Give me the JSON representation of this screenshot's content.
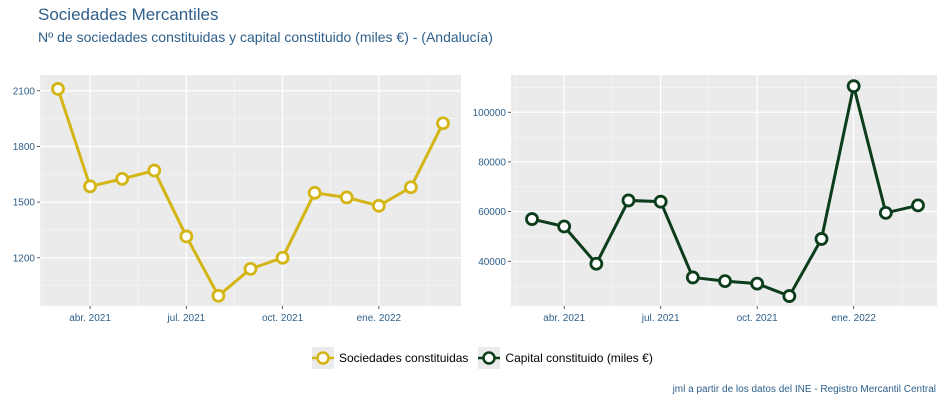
{
  "header": {
    "title": "Sociedades Mercantiles",
    "subtitle": "Nº de sociedades constituidas y capital constituido (miles €) - (Andalucía)"
  },
  "legend": {
    "items": [
      {
        "label": "Sociedades constituidas",
        "color": "#d4b514"
      },
      {
        "label": "Capital constituido (miles €)",
        "color": "#0b3d1b"
      }
    ]
  },
  "caption": "jml a partir de los datos del INE - Registro Mercantil Central",
  "chart_data": [
    {
      "type": "line",
      "x": [
        "2021-03",
        "2021-04",
        "2021-05",
        "2021-06",
        "2021-07",
        "2021-08",
        "2021-09",
        "2021-10",
        "2021-11",
        "2021-12",
        "2022-01",
        "2022-02",
        "2022-03"
      ],
      "series": [
        {
          "name": "Sociedades constituidas",
          "color": "#d4b514",
          "values": [
            2110,
            1585,
            1625,
            1670,
            1315,
            995,
            1140,
            1200,
            1550,
            1525,
            1480,
            1580,
            1925
          ]
        }
      ],
      "xticks": [
        "abr. 2021",
        "jul. 2021",
        "oct. 2021",
        "ene. 2022"
      ],
      "yticks": [
        1200,
        1500,
        1800,
        2100
      ],
      "ylim": [
        940,
        2185
      ],
      "grid": true
    },
    {
      "type": "line",
      "x": [
        "2021-03",
        "2021-04",
        "2021-05",
        "2021-06",
        "2021-07",
        "2021-08",
        "2021-09",
        "2021-10",
        "2021-11",
        "2021-12",
        "2022-01",
        "2022-02",
        "2022-03"
      ],
      "series": [
        {
          "name": "Capital constituido (miles €)",
          "color": "#0b3d1b",
          "values": [
            57000,
            54000,
            39000,
            64500,
            64000,
            33500,
            32000,
            31000,
            26000,
            49000,
            110500,
            59500,
            62500
          ]
        }
      ],
      "xticks": [
        "abr. 2021",
        "jul. 2021",
        "oct. 2021",
        "ene. 2022"
      ],
      "yticks": [
        40000,
        60000,
        80000,
        100000
      ],
      "ylim": [
        22000,
        115000
      ],
      "grid": true
    }
  ]
}
